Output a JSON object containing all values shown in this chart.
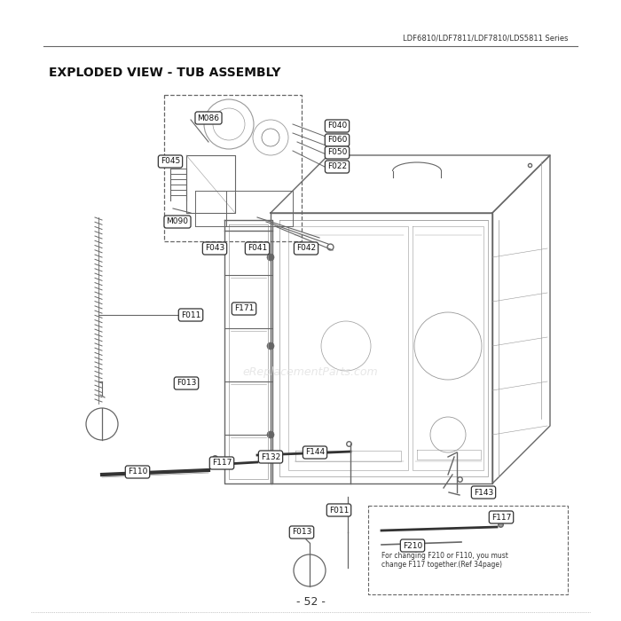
{
  "title": "EXPLODED VIEW - TUB ASSEMBLY",
  "header_text": "LDF6810/LDF7811/LDF7810/LDS5811 Series",
  "page_number": "- 52 -",
  "watermark": "eReplacementParts.com",
  "bg": "#ffffff",
  "dark": "#333333",
  "mid": "#666666",
  "light": "#999999"
}
